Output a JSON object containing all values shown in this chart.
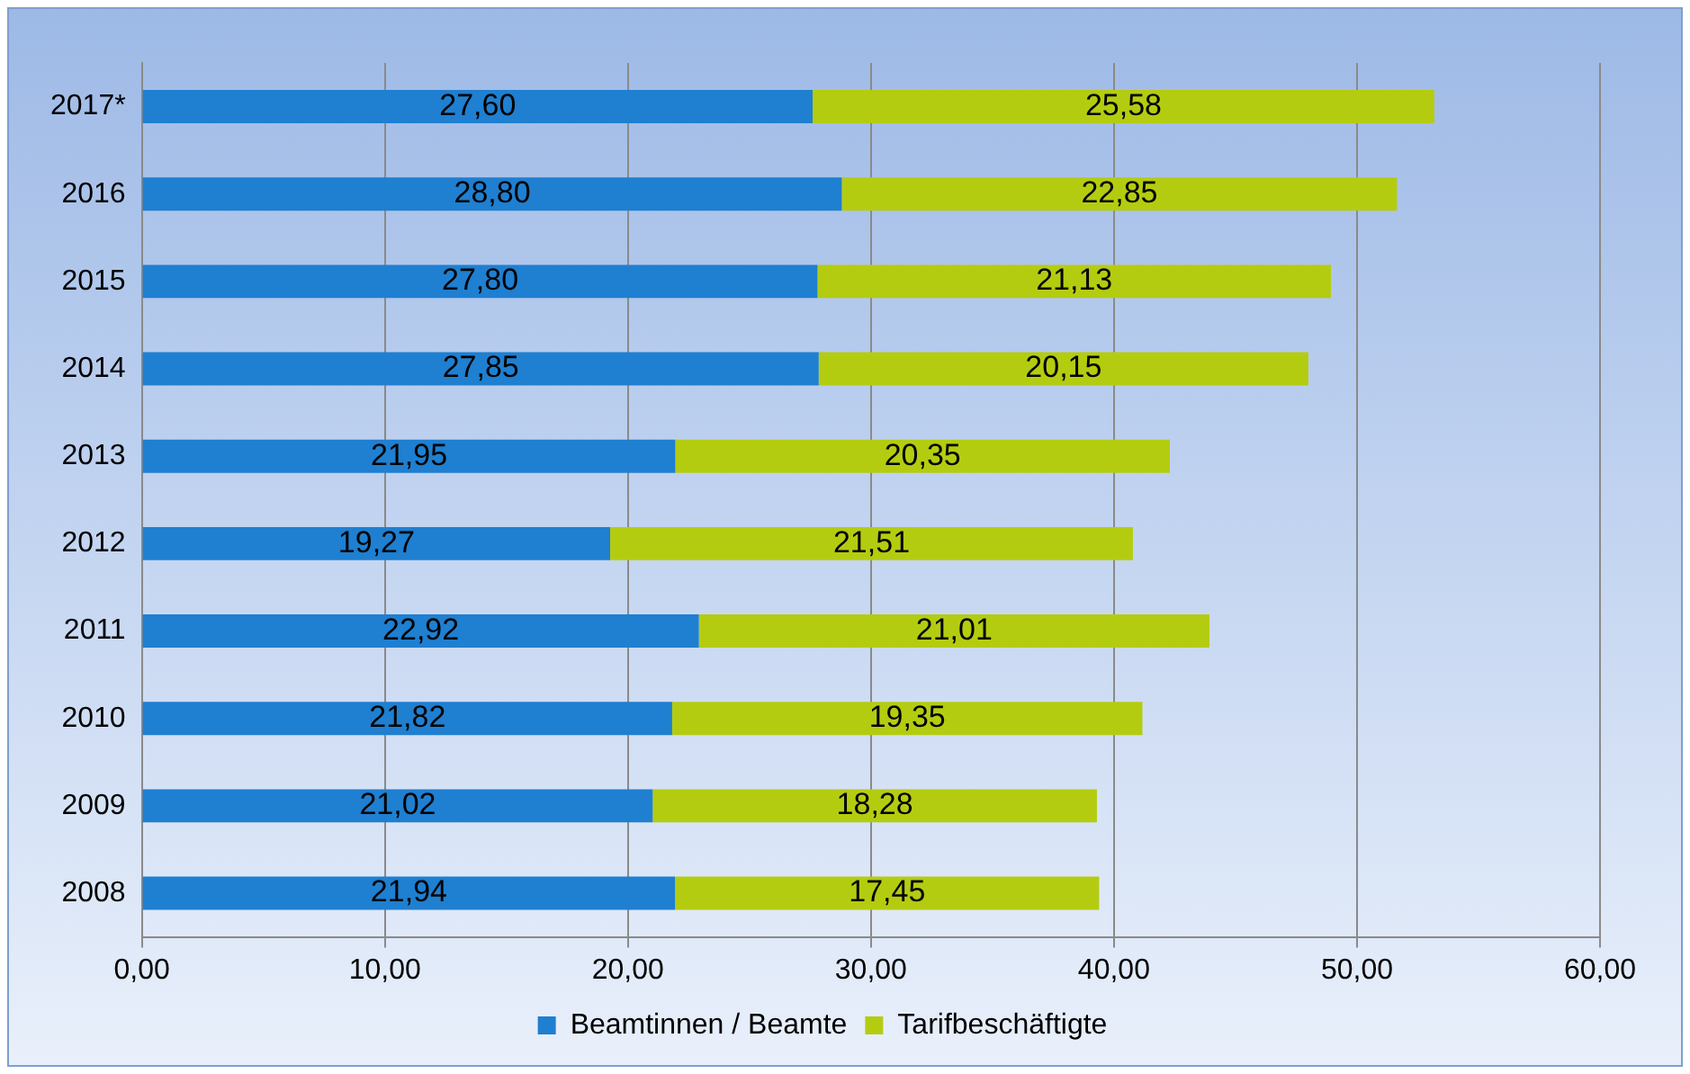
{
  "chart_data": {
    "type": "bar",
    "orientation": "horizontal",
    "stacked": true,
    "categories": [
      "2017*",
      "2016",
      "2015",
      "2014",
      "2013",
      "2012",
      "2011",
      "2010",
      "2009",
      "2008"
    ],
    "series": [
      {
        "name": "Beamtinnen / Beamte",
        "color": "#1f7fd0",
        "values": [
          27.6,
          28.8,
          27.8,
          27.85,
          21.95,
          19.27,
          22.92,
          21.82,
          21.02,
          21.94
        ],
        "value_labels": [
          "27,60",
          "28,80",
          "27,80",
          "27,85",
          "21,95",
          "19,27",
          "22,92",
          "21,82",
          "21,02",
          "21,94"
        ]
      },
      {
        "name": "Tarifbeschäftigte",
        "color": "#b4cc10",
        "values": [
          25.58,
          22.85,
          21.13,
          20.15,
          20.35,
          21.51,
          21.01,
          19.35,
          18.28,
          17.45
        ],
        "value_labels": [
          "25,58",
          "22,85",
          "21,13",
          "20,15",
          "20,35",
          "21,51",
          "21,01",
          "19,35",
          "18,28",
          "17,45"
        ]
      }
    ],
    "xlim": [
      0,
      60
    ],
    "xticks": [
      {
        "value": 0,
        "label": "0,00"
      },
      {
        "value": 10,
        "label": "10,00"
      },
      {
        "value": 20,
        "label": "20,00"
      },
      {
        "value": 30,
        "label": "30,00"
      },
      {
        "value": 40,
        "label": "40,00"
      },
      {
        "value": 50,
        "label": "50,00"
      },
      {
        "value": 60,
        "label": "60,00"
      }
    ],
    "grid": "x",
    "legend": "bottom"
  }
}
